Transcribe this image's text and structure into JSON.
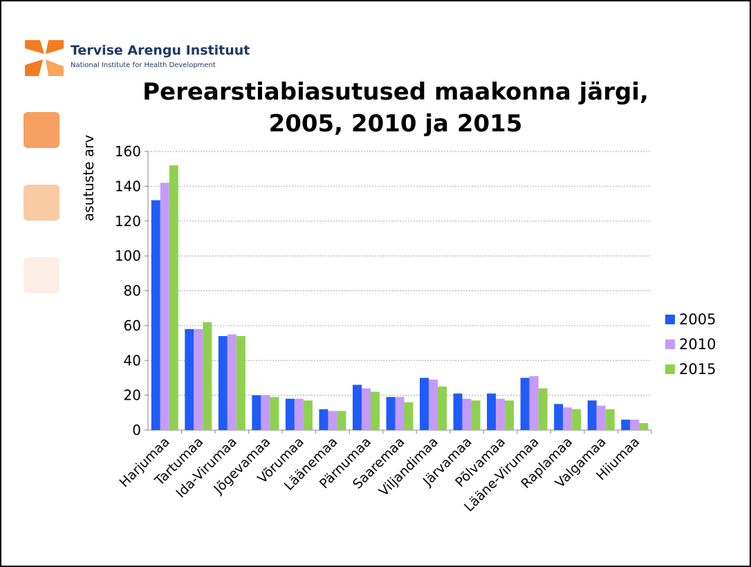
{
  "header": {
    "org_name": "Tervise Arengu Instituut",
    "org_subtitle": "National Institute for Health Development"
  },
  "colors": {
    "series_2005": "#1f5cf5",
    "series_2010": "#c59bf7",
    "series_2015": "#8fd14f",
    "brand_orange": "#f47c20"
  },
  "chart_data": {
    "type": "bar",
    "title_lines": [
      "Perearstiabiasutused maakonna järgi,",
      "2005, 2010 ja 2015"
    ],
    "ylabel": "asutuste arv",
    "xlabel": "",
    "ylim": [
      0,
      160
    ],
    "yticks": [
      0,
      20,
      40,
      60,
      80,
      100,
      120,
      140,
      160
    ],
    "grid": true,
    "legend_position": "right",
    "categories": [
      "Harjumaa",
      "Tartumaa",
      "Ida-Virumaa",
      "Jõgevamaa",
      "Võrumaa",
      "Läänemaa",
      "Pärnumaa",
      "Saaremaa",
      "Viljandimaa",
      "Järvamaa",
      "Põlvamaa",
      "Lääne-Virumaa",
      "Raplamaa",
      "Valgamaa",
      "Hiiumaa"
    ],
    "series": [
      {
        "name": "2005",
        "values": [
          132,
          58,
          54,
          20,
          18,
          12,
          26,
          19,
          30,
          21,
          21,
          30,
          15,
          17,
          6
        ]
      },
      {
        "name": "2010",
        "values": [
          142,
          58,
          55,
          20,
          18,
          11,
          24,
          19,
          29,
          18,
          18,
          31,
          13,
          14,
          6
        ]
      },
      {
        "name": "2015",
        "values": [
          152,
          62,
          54,
          19,
          17,
          11,
          22,
          16,
          25,
          17,
          17,
          24,
          12,
          12,
          4
        ]
      }
    ]
  }
}
